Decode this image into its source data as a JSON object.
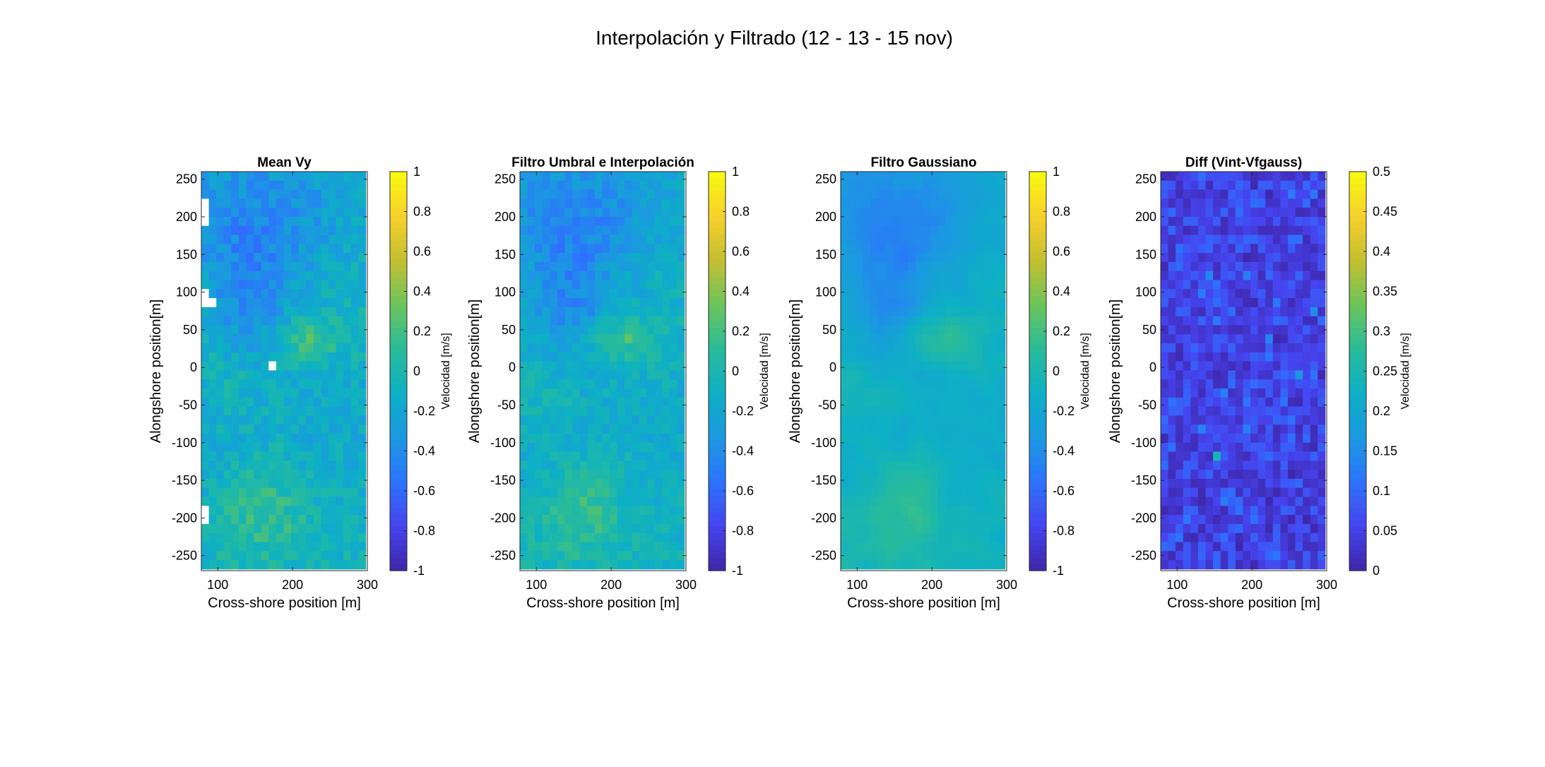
{
  "figure": {
    "title": "Interpolación y Filtrado (12 - 13 - 15 nov)"
  },
  "chart_data": [
    {
      "type": "heatmap",
      "title": "Mean Vy",
      "xlabel": "Cross-shore position [m]",
      "ylabel": "Alongshore position[m]",
      "xlim": [
        78,
        300
      ],
      "ylim": [
        -270,
        260
      ],
      "xticks": [
        100,
        200,
        300
      ],
      "yticks": [
        250,
        200,
        150,
        100,
        50,
        0,
        -50,
        -100,
        -150,
        -200,
        -250
      ],
      "colorbar": {
        "label": "Velocidad [m/s]",
        "clim": [
          -1,
          1
        ],
        "ticks": [
          1,
          0.8,
          0.6,
          0.4,
          0.2,
          0,
          -0.2,
          -0.4,
          -0.6,
          -0.8,
          -1
        ]
      },
      "field": "vy",
      "gaps": [
        [
          86,
          260
        ],
        [
          86,
          250
        ],
        [
          86,
          240
        ],
        [
          86,
          230
        ],
        [
          86,
          220
        ],
        [
          75,
          20
        ],
        [
          75,
          21
        ],
        [
          71,
          17
        ],
        [
          71,
          18
        ],
        [
          72,
          17
        ],
        [
          72,
          18
        ],
        [
          71,
          19
        ],
        [
          72,
          19
        ],
        [
          64,
          18
        ],
        [
          64,
          19
        ],
        [
          60,
          19
        ],
        [
          50,
          20
        ],
        [
          49,
          20
        ],
        [
          49,
          21
        ],
        [
          38,
          0
        ],
        [
          37,
          0
        ],
        [
          21,
          9
        ],
        [
          14,
          0
        ],
        [
          14,
          1
        ],
        [
          13,
          0
        ],
        [
          3,
          0
        ],
        [
          4,
          0
        ],
        [
          5,
          0
        ]
      ],
      "gap_note": "cells [row, col] with no data"
    },
    {
      "type": "heatmap",
      "title": "Filtro Umbral e Interpolación",
      "xlabel": "Cross-shore position [m]",
      "ylabel": "Alongshore position[m]",
      "xlim": [
        78,
        300
      ],
      "ylim": [
        -270,
        260
      ],
      "xticks": [
        100,
        200,
        300
      ],
      "yticks": [
        250,
        200,
        150,
        100,
        50,
        0,
        -50,
        -100,
        -150,
        -200,
        -250
      ],
      "colorbar": {
        "label": "Velocidad [m/s]",
        "clim": [
          -1,
          1
        ],
        "ticks": [
          1,
          0.8,
          0.6,
          0.4,
          0.2,
          0,
          -0.2,
          -0.4,
          -0.6,
          -0.8,
          -1
        ]
      },
      "field": "vy_interp"
    },
    {
      "type": "heatmap",
      "title": "Filtro Gaussiano",
      "xlabel": "Cross-shore position [m]",
      "ylabel": "Alongshore position[m]",
      "xlim": [
        78,
        300
      ],
      "ylim": [
        -270,
        260
      ],
      "xticks": [
        100,
        200,
        300
      ],
      "yticks": [
        250,
        200,
        150,
        100,
        50,
        0,
        -50,
        -100,
        -150,
        -200,
        -250
      ],
      "colorbar": {
        "label": "Velocidad [m/s]",
        "clim": [
          -1,
          1
        ],
        "ticks": [
          1,
          0.8,
          0.6,
          0.4,
          0.2,
          0,
          -0.2,
          -0.4,
          -0.6,
          -0.8,
          -1
        ]
      },
      "field": "vy_gauss"
    },
    {
      "type": "heatmap",
      "title": "Diff (Vint-Vfgauss)",
      "xlabel": "Cross-shore position [m]",
      "ylabel": "Alongshore position[m]",
      "xlim": [
        78,
        300
      ],
      "ylim": [
        -270,
        260
      ],
      "xticks": [
        100,
        200,
        300
      ],
      "yticks": [
        250,
        200,
        150,
        100,
        50,
        0,
        -50,
        -100,
        -150,
        -200,
        -250
      ],
      "colorbar": {
        "label": "Velocidad [m/s]",
        "clim": [
          0,
          0.5
        ],
        "ticks": [
          0.5,
          0.45,
          0.4,
          0.35,
          0.3,
          0.25,
          0.2,
          0.15,
          0.1,
          0.05,
          0
        ]
      },
      "field": "diff"
    }
  ],
  "colormap": "parula",
  "colormap_stops": [
    "#3e26a8",
    "#4644ef",
    "#2c74fc",
    "#1c98e1",
    "#0db0c4",
    "#29bc99",
    "#6cc45b",
    "#c5bf30",
    "#f6d12b",
    "#f9fb0e"
  ]
}
